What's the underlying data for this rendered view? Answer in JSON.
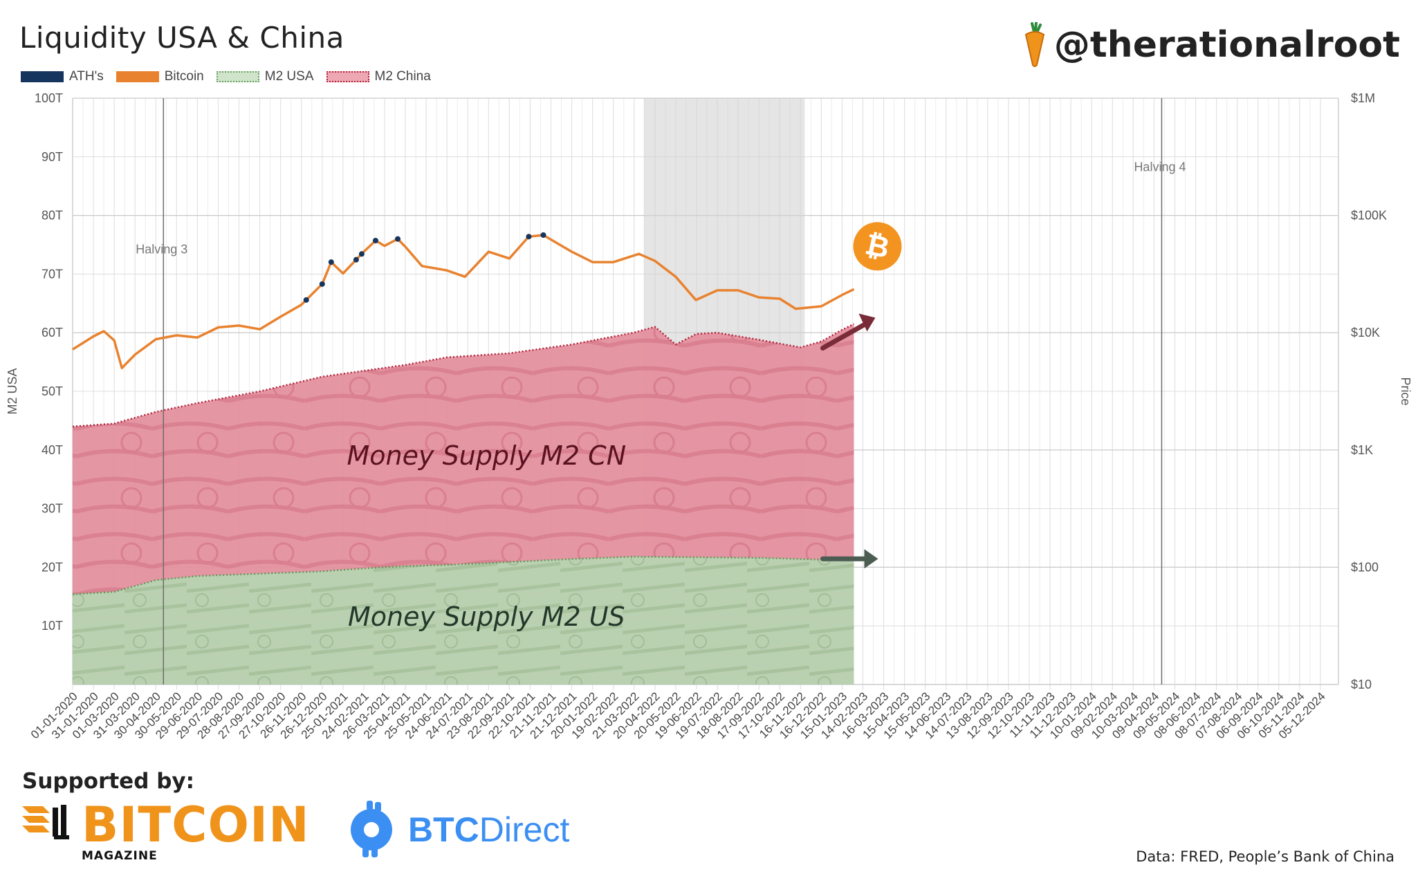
{
  "header": {
    "title": "Liquidity USA & China",
    "handle": "@therationalroot"
  },
  "legend": [
    {
      "label": "ATH's",
      "color": "#16355e"
    },
    {
      "label": "Bitcoin",
      "color": "#e8822f"
    },
    {
      "label": "M2 USA",
      "color": "#b9d8b3"
    },
    {
      "label": "M2 China",
      "color": "#e8909f"
    }
  ],
  "footer": {
    "supported_label": "Supported by:",
    "bitcoin_magazine_word": "BITCOIN",
    "bitcoin_magazine_sub": "MAGAZINE",
    "btcdirect_bold": "BTC",
    "btcdirect_light": "Direct",
    "source": "Data: FRED, People’s Bank of China"
  },
  "chart_data": {
    "type": "area",
    "ylabel_left": "M2 USA",
    "ylabel_right": "Price",
    "left_ticks": [
      "10T",
      "20T",
      "30T",
      "40T",
      "50T",
      "60T",
      "70T",
      "80T",
      "90T",
      "100T"
    ],
    "left_tick_values": [
      10,
      20,
      30,
      40,
      50,
      60,
      70,
      80,
      90,
      100
    ],
    "ylim_left": [
      0,
      100
    ],
    "right_ticks": [
      "$10",
      "$100",
      "$1K",
      "$10K",
      "$100K",
      "$1M"
    ],
    "right_tick_values": [
      10,
      100,
      1000,
      10000,
      100000,
      1000000
    ],
    "right_scale": "log",
    "ylim_right": [
      10,
      1000000
    ],
    "x_tick_labels": [
      "01-01-2020",
      "31-01-2020",
      "01-03-2020",
      "31-03-2020",
      "30-04-2020",
      "30-05-2020",
      "29-06-2020",
      "29-07-2020",
      "28-08-2020",
      "27-09-2020",
      "27-10-2020",
      "26-11-2020",
      "26-12-2020",
      "25-01-2021",
      "24-02-2021",
      "26-03-2021",
      "25-04-2021",
      "25-05-2021",
      "24-06-2021",
      "24-07-2021",
      "23-08-2021",
      "22-09-2021",
      "22-10-2021",
      "21-11-2021",
      "21-12-2021",
      "20-01-2022",
      "19-02-2022",
      "21-03-2022",
      "20-04-2022",
      "20-05-2022",
      "19-06-2022",
      "19-07-2022",
      "18-08-2022",
      "17-09-2022",
      "17-10-2022",
      "16-11-2022",
      "16-12-2022",
      "15-01-2023",
      "14-02-2023",
      "16-03-2023",
      "15-04-2023",
      "15-05-2023",
      "14-06-2023",
      "14-07-2023",
      "13-08-2023",
      "12-09-2023",
      "12-10-2023",
      "11-11-2023",
      "11-12-2023",
      "10-01-2024",
      "09-02-2024",
      "10-03-2024",
      "09-04-2024",
      "09-05-2024",
      "08-06-2024",
      "08-07-2024",
      "07-08-2024",
      "06-09-2024",
      "06-10-2024",
      "05-11-2024",
      "05-12-2024"
    ],
    "halvings": [
      {
        "label": "Halving 3",
        "date": "11-05-2020"
      },
      {
        "label": "Halving 4",
        "date": "20-04-2024"
      }
    ],
    "shaded_period": {
      "from": "04-04-2022",
      "to": "22-11-2022"
    },
    "annotations": [
      "Money Supply M2 CN",
      "Money Supply M2 US"
    ],
    "series": [
      {
        "name": "M2 USA",
        "axis": "left",
        "color": "#b9d8b3",
        "points": [
          {
            "x": "01-01-2020",
            "y": 15.4
          },
          {
            "x": "01-03-2020",
            "y": 15.8
          },
          {
            "x": "30-04-2020",
            "y": 17.8
          },
          {
            "x": "29-06-2020",
            "y": 18.5
          },
          {
            "x": "27-09-2020",
            "y": 18.9
          },
          {
            "x": "26-12-2020",
            "y": 19.3
          },
          {
            "x": "24-02-2021",
            "y": 19.8
          },
          {
            "x": "25-04-2021",
            "y": 20.2
          },
          {
            "x": "24-06-2021",
            "y": 20.4
          },
          {
            "x": "22-09-2021",
            "y": 20.9
          },
          {
            "x": "21-12-2021",
            "y": 21.4
          },
          {
            "x": "20-03-2022",
            "y": 21.8
          },
          {
            "x": "19-06-2022",
            "y": 21.7
          },
          {
            "x": "17-09-2022",
            "y": 21.6
          },
          {
            "x": "16-12-2022",
            "y": 21.3
          },
          {
            "x": "01-02-2023",
            "y": 21.2
          }
        ]
      },
      {
        "name": "M2 China",
        "axis": "left",
        "color": "#e8909f",
        "points": [
          {
            "x": "01-01-2020",
            "y": 44.0
          },
          {
            "x": "01-03-2020",
            "y": 44.5
          },
          {
            "x": "30-04-2020",
            "y": 46.5
          },
          {
            "x": "29-06-2020",
            "y": 48.0
          },
          {
            "x": "27-09-2020",
            "y": 50.0
          },
          {
            "x": "26-12-2020",
            "y": 52.5
          },
          {
            "x": "24-02-2021",
            "y": 53.5
          },
          {
            "x": "25-04-2021",
            "y": 54.5
          },
          {
            "x": "24-06-2021",
            "y": 55.8
          },
          {
            "x": "22-09-2021",
            "y": 56.5
          },
          {
            "x": "21-12-2021",
            "y": 58.0
          },
          {
            "x": "20-03-2022",
            "y": 60.0
          },
          {
            "x": "20-04-2022",
            "y": 61.0
          },
          {
            "x": "20-05-2022",
            "y": 58.0
          },
          {
            "x": "19-06-2022",
            "y": 59.8
          },
          {
            "x": "19-07-2022",
            "y": 60.0
          },
          {
            "x": "17-09-2022",
            "y": 58.8
          },
          {
            "x": "16-11-2022",
            "y": 57.5
          },
          {
            "x": "16-12-2022",
            "y": 58.5
          },
          {
            "x": "15-01-2023",
            "y": 60.5
          },
          {
            "x": "01-02-2023",
            "y": 61.5
          }
        ]
      },
      {
        "name": "Bitcoin",
        "axis": "right",
        "color": "#e8822f",
        "points": [
          {
            "x": "01-01-2020",
            "y": 7200
          },
          {
            "x": "31-01-2020",
            "y": 9300
          },
          {
            "x": "15-02-2020",
            "y": 10300
          },
          {
            "x": "01-03-2020",
            "y": 8600
          },
          {
            "x": "12-03-2020",
            "y": 5000
          },
          {
            "x": "31-03-2020",
            "y": 6500
          },
          {
            "x": "30-04-2020",
            "y": 8800
          },
          {
            "x": "30-05-2020",
            "y": 9500
          },
          {
            "x": "29-06-2020",
            "y": 9100
          },
          {
            "x": "29-07-2020",
            "y": 11100
          },
          {
            "x": "28-08-2020",
            "y": 11500
          },
          {
            "x": "27-09-2020",
            "y": 10700
          },
          {
            "x": "27-10-2020",
            "y": 13700
          },
          {
            "x": "26-11-2020",
            "y": 17300
          },
          {
            "x": "26-12-2020",
            "y": 26000
          },
          {
            "x": "08-01-2021",
            "y": 40000
          },
          {
            "x": "25-01-2021",
            "y": 32000
          },
          {
            "x": "24-02-2021",
            "y": 49000
          },
          {
            "x": "13-03-2021",
            "y": 61000
          },
          {
            "x": "26-03-2021",
            "y": 55000
          },
          {
            "x": "14-04-2021",
            "y": 63000
          },
          {
            "x": "25-04-2021",
            "y": 54000
          },
          {
            "x": "19-05-2021",
            "y": 37000
          },
          {
            "x": "24-06-2021",
            "y": 34000
          },
          {
            "x": "20-07-2021",
            "y": 30000
          },
          {
            "x": "23-08-2021",
            "y": 49000
          },
          {
            "x": "22-09-2021",
            "y": 43000
          },
          {
            "x": "20-10-2021",
            "y": 66000
          },
          {
            "x": "10-11-2021",
            "y": 68000
          },
          {
            "x": "21-12-2021",
            "y": 49000
          },
          {
            "x": "20-01-2022",
            "y": 40000
          },
          {
            "x": "19-02-2022",
            "y": 40000
          },
          {
            "x": "28-03-2022",
            "y": 47000
          },
          {
            "x": "20-04-2022",
            "y": 41000
          },
          {
            "x": "20-05-2022",
            "y": 30000
          },
          {
            "x": "18-06-2022",
            "y": 19000
          },
          {
            "x": "19-07-2022",
            "y": 23000
          },
          {
            "x": "18-08-2022",
            "y": 23000
          },
          {
            "x": "17-09-2022",
            "y": 20000
          },
          {
            "x": "17-10-2022",
            "y": 19500
          },
          {
            "x": "09-11-2022",
            "y": 16000
          },
          {
            "x": "16-12-2022",
            "y": 16800
          },
          {
            "x": "15-01-2023",
            "y": 21000
          },
          {
            "x": "01-02-2023",
            "y": 23500
          }
        ]
      }
    ],
    "ath_markers": [
      "03-12-2020",
      "26-12-2020",
      "08-01-2021",
      "13-02-2021",
      "21-02-2021",
      "13-03-2021",
      "14-04-2021",
      "20-10-2021",
      "10-11-2021"
    ]
  }
}
